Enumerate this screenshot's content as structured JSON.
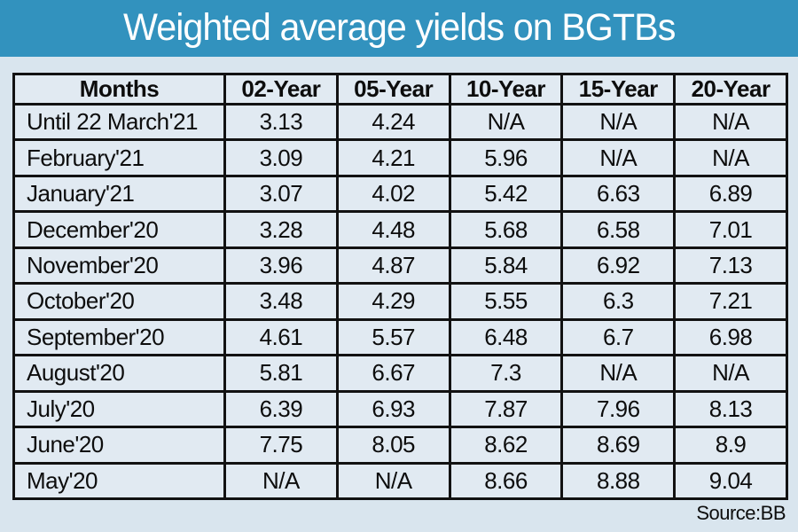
{
  "title": "Weighted average yields on BGTBs",
  "source": "Source:BB",
  "colors": {
    "title_bar": "#3292be",
    "title_text": "#ffffff",
    "page_bg": "#d9e5ee",
    "cell_bg": "#e1eaf2",
    "border": "#121212",
    "text": "#0d0d0d"
  },
  "chart_data": {
    "type": "table",
    "title": "Weighted average yields on BGTBs",
    "columns": [
      "Months",
      "02-Year",
      "05-Year",
      "10-Year",
      "15-Year",
      "20-Year"
    ],
    "rows": [
      [
        "Until 22 March'21",
        "3.13",
        "4.24",
        "N/A",
        "N/A",
        "N/A"
      ],
      [
        "February'21",
        "3.09",
        "4.21",
        "5.96",
        "N/A",
        "N/A"
      ],
      [
        "January'21",
        "3.07",
        "4.02",
        "5.42",
        "6.63",
        "6.89"
      ],
      [
        "December'20",
        "3.28",
        "4.48",
        "5.68",
        "6.58",
        "7.01"
      ],
      [
        "November'20",
        "3.96",
        "4.87",
        "5.84",
        "6.92",
        "7.13"
      ],
      [
        "October'20",
        "3.48",
        "4.29",
        "5.55",
        "6.3",
        "7.21"
      ],
      [
        "September'20",
        "4.61",
        "5.57",
        "6.48",
        "6.7",
        "6.98"
      ],
      [
        "August'20",
        "5.81",
        "6.67",
        "7.3",
        "N/A",
        "N/A"
      ],
      [
        "July'20",
        "6.39",
        "6.93",
        "7.87",
        "7.96",
        "8.13"
      ],
      [
        "June'20",
        "7.75",
        "8.05",
        "8.62",
        "8.69",
        "8.9"
      ],
      [
        "May'20",
        "N/A",
        "N/A",
        "8.66",
        "8.88",
        "9.04"
      ]
    ],
    "source_note": "Source:BB",
    "layout_hints": {
      "grid": true,
      "first_column_align": "left",
      "value_align": "center",
      "na_label": "N/A"
    }
  }
}
